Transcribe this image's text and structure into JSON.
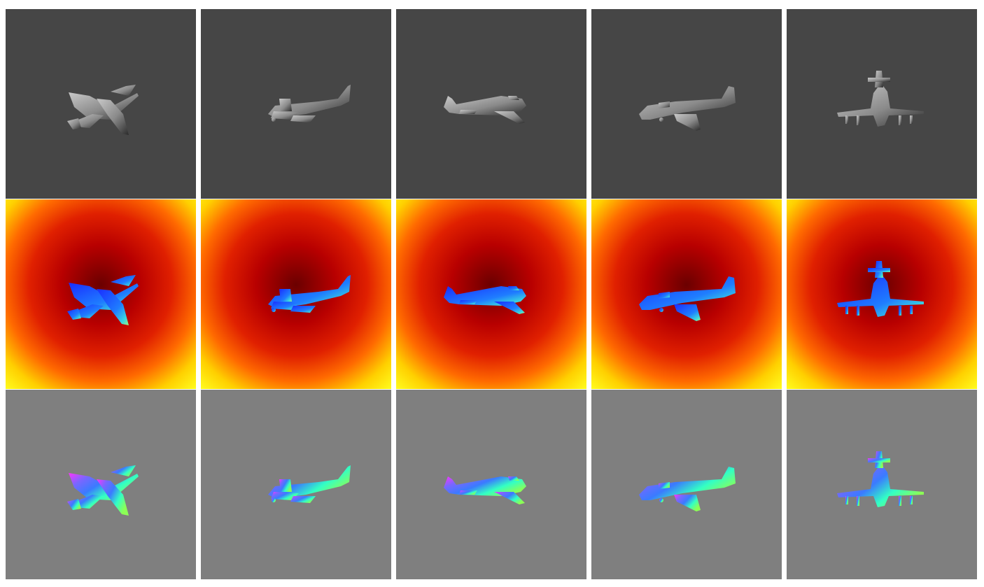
{
  "figure": {
    "rows": [
      {
        "kind": "shaded-render",
        "background": "#464646"
      },
      {
        "kind": "depth-map",
        "palette": [
          "#6b0000",
          "#b80000",
          "#e02000",
          "#ff6a00",
          "#ffd000",
          "#ffff20"
        ]
      },
      {
        "kind": "normal-map",
        "background": "#7f7f7f",
        "palette": [
          "#ff33ff",
          "#7a66ff",
          "#3a7bff",
          "#33ffc4",
          "#8cff55"
        ]
      }
    ],
    "columns": [
      {
        "subject": "jet-aircraft",
        "view": "top-down-banking"
      },
      {
        "subject": "cargo-aircraft",
        "view": "side-low"
      },
      {
        "subject": "cargo-aircraft",
        "view": "side"
      },
      {
        "subject": "cargo-aircraft",
        "view": "side-high"
      },
      {
        "subject": "propeller-aircraft",
        "view": "front-tail"
      }
    ],
    "colors": {
      "render_plane_light": "#c9c9c9",
      "render_plane_dark": "#2a2a2a",
      "depth_plane_near": "#1a2cff",
      "depth_plane_far": "#3ad7e0",
      "depth_plane_tip": "#9cf57a"
    }
  }
}
